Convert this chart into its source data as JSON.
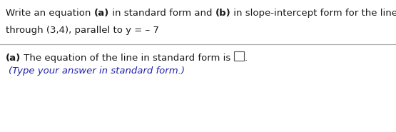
{
  "bg_color": "#ffffff",
  "line1_parts": [
    {
      "text": "Write an equation ",
      "bold": false,
      "color": "#1a1a1a"
    },
    {
      "text": "(a)",
      "bold": true,
      "color": "#1a1a1a"
    },
    {
      "text": " in standard form and ",
      "bold": false,
      "color": "#1a1a1a"
    },
    {
      "text": "(b)",
      "bold": true,
      "color": "#1a1a1a"
    },
    {
      "text": " in slope-intercept form for the line described.",
      "bold": false,
      "color": "#1a1a1a"
    }
  ],
  "line2": "through (3,4), parallel to y = – 7",
  "line2_color": "#1a1a1a",
  "line3_parts": [
    {
      "text": "(a)",
      "bold": true,
      "color": "#1a1a1a"
    },
    {
      "text": " The equation of the line in standard form is ",
      "bold": false,
      "color": "#1a1a1a"
    }
  ],
  "line3_end": ".",
  "line4": "(Type your answer in standard form.)",
  "line4_color": "#2222aa",
  "box_color": "#555555",
  "font_size": 9.5
}
